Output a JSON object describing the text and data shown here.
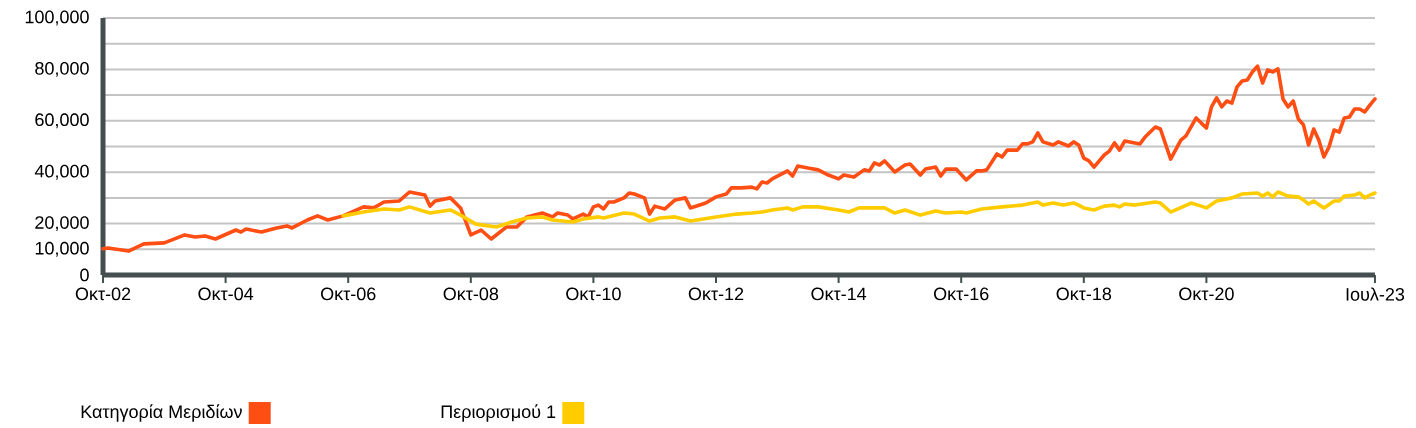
{
  "chart_data": {
    "type": "line",
    "xlim": [
      "2002-10",
      "2023-07"
    ],
    "xticks": [
      {
        "value": "2002-10",
        "label": "Οκτ-02"
      },
      {
        "value": "2004-10",
        "label": "Οκτ-04"
      },
      {
        "value": "2006-10",
        "label": "Οκτ-06"
      },
      {
        "value": "2008-10",
        "label": "Οκτ-08"
      },
      {
        "value": "2010-10",
        "label": "Οκτ-10"
      },
      {
        "value": "2012-10",
        "label": "Οκτ-12"
      },
      {
        "value": "2014-10",
        "label": "Οκτ-14"
      },
      {
        "value": "2016-10",
        "label": "Οκτ-16"
      },
      {
        "value": "2018-10",
        "label": "Οκτ-18"
      },
      {
        "value": "2020-10",
        "label": "Οκτ-20"
      },
      {
        "value": "2023-07",
        "label": "Ιουλ-23"
      }
    ],
    "ylim": [
      0,
      100000
    ],
    "yticks": [
      0,
      {
        "value": 10000,
        "label": "10,000"
      },
      {
        "value": 20000,
        "label": "20,000"
      },
      {
        "value": 30000,
        "label": null
      },
      {
        "value": 40000,
        "label": "40,000"
      },
      {
        "value": 50000,
        "label": null
      },
      {
        "value": 60000,
        "label": "60,000"
      },
      {
        "value": 70000,
        "label": null
      },
      {
        "value": 80000,
        "label": "80,000"
      },
      {
        "value": 90000,
        "label": null
      },
      {
        "value": 100000,
        "label": "100,000"
      }
    ],
    "grid": "y",
    "legend": "bottom",
    "series": [
      {
        "name": "Κατηγορία Μεριδίων",
        "color": "#ff4e14",
        "x": [
          "2002-10",
          "2002-11",
          "2003-03",
          "2003-06",
          "2003-10",
          "2004-02",
          "2004-04",
          "2004-06",
          "2004-08",
          "2004-12",
          "2005-01",
          "2005-02",
          "2005-05",
          "2005-08",
          "2005-10",
          "2005-11",
          "2006-02",
          "2006-04",
          "2006-06",
          "2006-09",
          "2007-01",
          "2007-03",
          "2007-05",
          "2007-08",
          "2007-10",
          "2008-01",
          "2008-02",
          "2008-03",
          "2008-06",
          "2008-08",
          "2008-10",
          "2008-12",
          "2009-02",
          "2009-05",
          "2009-07",
          "2009-09",
          "2009-12",
          "2010-02",
          "2010-03",
          "2010-05",
          "2010-06",
          "2010-08",
          "2010-09",
          "2010-10",
          "2010-11",
          "2010-12",
          "2011-01",
          "2011-02",
          "2011-04",
          "2011-05",
          "2011-06",
          "2011-08",
          "2011-09",
          "2011-10",
          "2011-12",
          "2012-02",
          "2012-04",
          "2012-05",
          "2012-08",
          "2012-10",
          "2012-12",
          "2013-01",
          "2013-03",
          "2013-05",
          "2013-06",
          "2013-07",
          "2013-08",
          "2013-09",
          "2013-12",
          "2014-01",
          "2014-02",
          "2014-04",
          "2014-06",
          "2014-08",
          "2014-10",
          "2014-11",
          "2015-01",
          "2015-03",
          "2015-04",
          "2015-05",
          "2015-06",
          "2015-07",
          "2015-09",
          "2015-11",
          "2015-12",
          "2016-02",
          "2016-03",
          "2016-05",
          "2016-06",
          "2016-07",
          "2016-09",
          "2016-11",
          "2017-01",
          "2017-02",
          "2017-03",
          "2017-05",
          "2017-06",
          "2017-07",
          "2017-09",
          "2017-10",
          "2017-11",
          "2017-12",
          "2018-01",
          "2018-02",
          "2018-04",
          "2018-05",
          "2018-07",
          "2018-08",
          "2018-09",
          "2018-10",
          "2018-11",
          "2018-12",
          "2019-02",
          "2019-03",
          "2019-04",
          "2019-05",
          "2019-06",
          "2019-09",
          "2019-10",
          "2019-12",
          "2020-01",
          "2020-03",
          "2020-05",
          "2020-06",
          "2020-08",
          "2020-09",
          "2020-10",
          "2020-11",
          "2020-12",
          "2021-01",
          "2021-02",
          "2021-03",
          "2021-04",
          "2021-05",
          "2021-06",
          "2021-07",
          "2021-08",
          "2021-09",
          "2021-10",
          "2021-11",
          "2021-12",
          "2022-01",
          "2022-02",
          "2022-03",
          "2022-04",
          "2022-05",
          "2022-06",
          "2022-07",
          "2022-08",
          "2022-09",
          "2022-10",
          "2022-11",
          "2022-12",
          "2023-01",
          "2023-02",
          "2023-03",
          "2023-04",
          "2023-05",
          "2023-06",
          "2023-07"
        ],
        "values": [
          10200,
          10500,
          9300,
          12100,
          12500,
          15600,
          14800,
          15200,
          14000,
          17500,
          16700,
          17900,
          16700,
          18300,
          19100,
          18300,
          21400,
          23000,
          21400,
          23000,
          26500,
          26100,
          28400,
          28800,
          32300,
          31100,
          26800,
          28800,
          30000,
          26100,
          15600,
          17500,
          14000,
          18700,
          18700,
          22600,
          24100,
          22600,
          24100,
          23300,
          21800,
          23700,
          22600,
          26500,
          27200,
          25700,
          28400,
          28400,
          30000,
          31900,
          31500,
          30000,
          23700,
          26800,
          25700,
          29200,
          30000,
          26100,
          28000,
          30400,
          31500,
          33900,
          33900,
          34200,
          33500,
          36200,
          35800,
          37400,
          40500,
          38500,
          42400,
          41600,
          40900,
          38900,
          37400,
          38900,
          38100,
          40900,
          40500,
          43600,
          42800,
          44400,
          40100,
          42800,
          43200,
          38900,
          41200,
          42000,
          38500,
          41200,
          41200,
          37000,
          40500,
          40500,
          40900,
          47100,
          45900,
          48600,
          48600,
          51000,
          51000,
          51800,
          55300,
          51800,
          50600,
          51800,
          50200,
          51800,
          50600,
          45500,
          44400,
          42000,
          46700,
          48200,
          51400,
          48600,
          52100,
          51000,
          53700,
          57600,
          56800,
          45100,
          52500,
          54100,
          61100,
          59100,
          57200,
          65400,
          68900,
          65400,
          67700,
          66900,
          73200,
          75500,
          75900,
          79000,
          81300,
          74700,
          79800,
          79000,
          80200,
          68500,
          65400,
          67700,
          60700,
          58400,
          50600,
          56800,
          52500,
          45900,
          49800,
          56400,
          55600,
          61100,
          61500,
          64600,
          64600,
          63400,
          66100,
          68500
        ]
      },
      {
        "name": "Περιορισμού 1",
        "color": "#ffcc00",
        "x": [
          "2006-09",
          "2007-01",
          "2007-05",
          "2007-08",
          "2007-10",
          "2008-02",
          "2008-06",
          "2008-08",
          "2008-11",
          "2009-03",
          "2009-06",
          "2009-09",
          "2009-12",
          "2010-02",
          "2010-06",
          "2010-08",
          "2010-11",
          "2010-12",
          "2011-04",
          "2011-06",
          "2011-09",
          "2011-11",
          "2012-02",
          "2012-05",
          "2012-10",
          "2013-02",
          "2013-05",
          "2013-07",
          "2013-09",
          "2013-12",
          "2014-01",
          "2014-03",
          "2014-06",
          "2014-10",
          "2014-12",
          "2015-02",
          "2015-05",
          "2015-07",
          "2015-09",
          "2015-11",
          "2016-02",
          "2016-05",
          "2016-07",
          "2016-10",
          "2016-11",
          "2017-02",
          "2017-06",
          "2017-10",
          "2018-01",
          "2018-02",
          "2018-04",
          "2018-06",
          "2018-08",
          "2018-09",
          "2018-10",
          "2018-12",
          "2019-02",
          "2019-04",
          "2019-05",
          "2019-06",
          "2019-08",
          "2019-12",
          "2020-01",
          "2020-03",
          "2020-07",
          "2020-09",
          "2020-10",
          "2020-12",
          "2021-01",
          "2021-03",
          "2021-05",
          "2021-08",
          "2021-09",
          "2021-10",
          "2021-11",
          "2021-12",
          "2022-02",
          "2022-04",
          "2022-05",
          "2022-06",
          "2022-07",
          "2022-09",
          "2022-11",
          "2022-12",
          "2023-01",
          "2023-03",
          "2023-04",
          "2023-05",
          "2023-06",
          "2023-07"
        ],
        "values": [
          23000,
          24500,
          25700,
          25300,
          26500,
          24100,
          25300,
          23300,
          19800,
          18700,
          20600,
          22200,
          22600,
          21400,
          20600,
          21800,
          22600,
          22200,
          24100,
          23700,
          21000,
          22200,
          22600,
          21000,
          22600,
          23700,
          24100,
          24500,
          25300,
          26100,
          25300,
          26500,
          26500,
          25300,
          24500,
          26100,
          26100,
          26100,
          24100,
          25300,
          23300,
          24900,
          24100,
          24500,
          24100,
          25700,
          26500,
          27200,
          28400,
          27200,
          28000,
          27200,
          28000,
          27200,
          26100,
          25300,
          26800,
          27200,
          26500,
          27600,
          27200,
          28400,
          28000,
          24500,
          28000,
          26800,
          26100,
          28800,
          29200,
          30000,
          31500,
          31900,
          30700,
          31900,
          30400,
          32300,
          30700,
          30400,
          29200,
          27600,
          28800,
          26100,
          28800,
          28800,
          30700,
          31100,
          31900,
          30000,
          31100,
          31900
        ]
      }
    ]
  }
}
